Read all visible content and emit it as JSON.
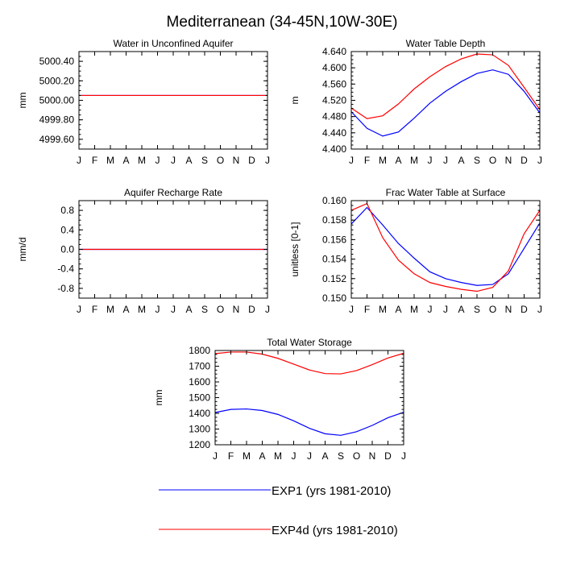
{
  "figure": {
    "title": "Mediterranean (34-45N,10W-30E)"
  },
  "legend": {
    "entries": [
      {
        "label": "EXP1 (yrs 1981-2010)",
        "color": "#0000ff"
      },
      {
        "label": "EXP4d (yrs 1981-2010)",
        "color": "#ff0000"
      }
    ]
  },
  "chart_data": [
    {
      "type": "line",
      "title": "Water in Unconfined Aquifer",
      "xlabel": "",
      "ylabel": "mm",
      "categories": [
        "J",
        "F",
        "M",
        "A",
        "M",
        "J",
        "J",
        "A",
        "S",
        "O",
        "N",
        "D",
        "J"
      ],
      "ylim": [
        4999.5,
        5000.5
      ],
      "yticks": [
        4999.6,
        4999.8,
        5000.0,
        5000.2,
        5000.4
      ],
      "ytick_labels": [
        "4999.60",
        "4999.80",
        "5000.00",
        "5000.20",
        "5000.40"
      ],
      "series": [
        {
          "name": "EXP1 (yrs 1981-2010)",
          "color": "#0000ff",
          "values": [
            5000.05,
            5000.05,
            5000.05,
            5000.05,
            5000.05,
            5000.05,
            5000.05,
            5000.05,
            5000.05,
            5000.05,
            5000.05,
            5000.05,
            5000.05
          ]
        },
        {
          "name": "EXP4d (yrs 1981-2010)",
          "color": "#ff0000",
          "values": [
            5000.05,
            5000.05,
            5000.05,
            5000.05,
            5000.05,
            5000.05,
            5000.05,
            5000.05,
            5000.05,
            5000.05,
            5000.05,
            5000.05,
            5000.05
          ]
        }
      ]
    },
    {
      "type": "line",
      "title": "Water Table Depth",
      "xlabel": "",
      "ylabel": "m",
      "categories": [
        "J",
        "F",
        "M",
        "A",
        "M",
        "J",
        "J",
        "A",
        "S",
        "O",
        "N",
        "D",
        "J"
      ],
      "ylim": [
        4.4,
        4.64
      ],
      "yticks": [
        4.4,
        4.44,
        4.48,
        4.52,
        4.56,
        4.6,
        4.64
      ],
      "ytick_labels": [
        "4.400",
        "4.440",
        "4.480",
        "4.520",
        "4.560",
        "4.600",
        "4.640"
      ],
      "series": [
        {
          "name": "EXP1 (yrs 1981-2010)",
          "color": "#0000ff",
          "values": [
            4.492,
            4.451,
            4.432,
            4.442,
            4.476,
            4.513,
            4.542,
            4.566,
            4.586,
            4.595,
            4.584,
            4.542,
            4.489
          ]
        },
        {
          "name": "EXP4d (yrs 1981-2010)",
          "color": "#ff0000",
          "values": [
            4.501,
            4.475,
            4.482,
            4.511,
            4.548,
            4.578,
            4.603,
            4.622,
            4.634,
            4.632,
            4.606,
            4.552,
            4.497
          ]
        }
      ]
    },
    {
      "type": "line",
      "title": "Aquifer Recharge Rate",
      "xlabel": "",
      "ylabel": "mm/d",
      "categories": [
        "J",
        "F",
        "M",
        "A",
        "M",
        "J",
        "J",
        "A",
        "S",
        "O",
        "N",
        "D",
        "J"
      ],
      "ylim": [
        -1.0,
        1.0
      ],
      "yticks": [
        -0.8,
        -0.4,
        0.0,
        0.4,
        0.8
      ],
      "ytick_labels": [
        "-0.8",
        "-0.4",
        "0.0",
        "0.4",
        "0.8"
      ],
      "series": [
        {
          "name": "EXP1 (yrs 1981-2010)",
          "color": "#0000ff",
          "values": [
            0,
            0,
            0,
            0,
            0,
            0,
            0,
            0,
            0,
            0,
            0,
            0,
            0
          ]
        },
        {
          "name": "EXP4d (yrs 1981-2010)",
          "color": "#ff0000",
          "values": [
            0,
            0,
            0,
            0,
            0,
            0,
            0,
            0,
            0,
            0,
            0,
            0,
            0
          ]
        }
      ]
    },
    {
      "type": "line",
      "title": "Frac Water Table at Surface",
      "xlabel": "",
      "ylabel": "unitless [0-1]",
      "categories": [
        "J",
        "F",
        "M",
        "A",
        "M",
        "J",
        "J",
        "A",
        "S",
        "O",
        "N",
        "D",
        "J"
      ],
      "ylim": [
        0.15,
        0.16
      ],
      "yticks": [
        0.15,
        0.152,
        0.154,
        0.156,
        0.158,
        0.16
      ],
      "ytick_labels": [
        "0.150",
        "0.152",
        "0.154",
        "0.156",
        "0.158",
        "0.160"
      ],
      "series": [
        {
          "name": "EXP1 (yrs 1981-2010)",
          "color": "#0000ff",
          "values": [
            0.1576,
            0.1593,
            0.1575,
            0.1556,
            0.1541,
            0.1527,
            0.152,
            0.1516,
            0.1513,
            0.1514,
            0.1525,
            0.1551,
            0.1577
          ]
        },
        {
          "name": "EXP4d (yrs 1981-2010)",
          "color": "#ff0000",
          "values": [
            0.159,
            0.1597,
            0.1562,
            0.1539,
            0.1525,
            0.1516,
            0.1512,
            0.1509,
            0.1507,
            0.1511,
            0.1528,
            0.1566,
            0.159
          ]
        }
      ]
    },
    {
      "type": "line",
      "title": "Total Water Storage",
      "xlabel": "",
      "ylabel": "mm",
      "categories": [
        "J",
        "F",
        "M",
        "A",
        "M",
        "J",
        "J",
        "A",
        "S",
        "O",
        "N",
        "D",
        "J"
      ],
      "ylim": [
        1200,
        1800
      ],
      "yticks": [
        1200,
        1300,
        1400,
        1500,
        1600,
        1700,
        1800
      ],
      "ytick_labels": [
        "1200",
        "1300",
        "1400",
        "1500",
        "1600",
        "1700",
        "1800"
      ],
      "series": [
        {
          "name": "EXP1 (yrs 1981-2010)",
          "color": "#0000ff",
          "values": [
            1405,
            1425,
            1428,
            1418,
            1393,
            1352,
            1305,
            1270,
            1260,
            1283,
            1323,
            1372,
            1407
          ]
        },
        {
          "name": "EXP4d (yrs 1981-2010)",
          "color": "#ff0000",
          "values": [
            1780,
            1790,
            1790,
            1777,
            1750,
            1713,
            1676,
            1653,
            1651,
            1672,
            1710,
            1752,
            1782
          ]
        }
      ]
    }
  ]
}
